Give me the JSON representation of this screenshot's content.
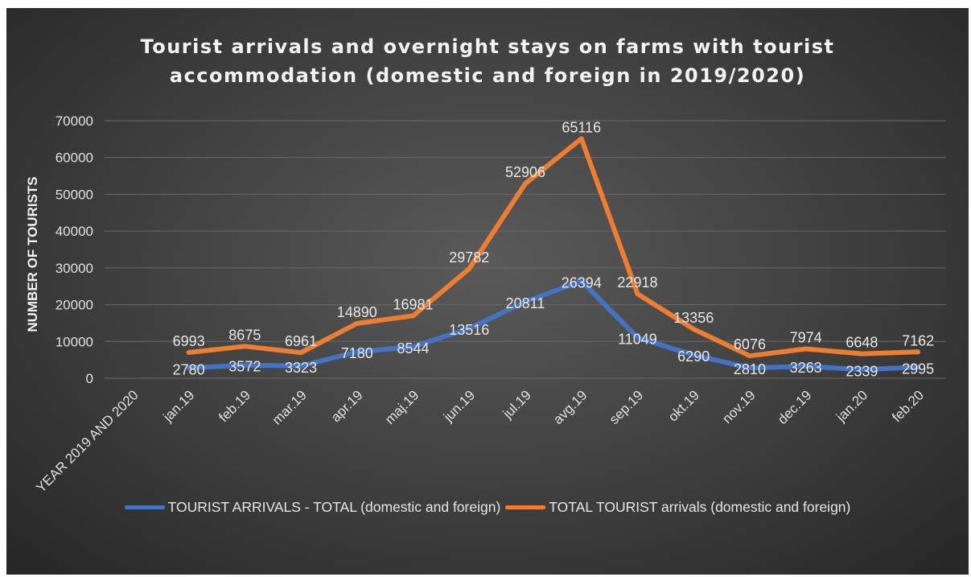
{
  "chart_data": {
    "type": "line",
    "title_lines": [
      "Tourist arrivals and overnight stays on farms with tourist",
      "accommodation (domestic and foreign in 2019/2020)"
    ],
    "xlabel": "",
    "ylabel": "NUMBER OF TOURISTS",
    "ylim": [
      0,
      70000
    ],
    "yticks": [
      "0",
      "10000",
      "20000",
      "30000",
      "40000",
      "50000",
      "60000",
      "70000"
    ],
    "categories": [
      "YEAR 2019 AND 2020",
      "jan.19",
      "feb.19",
      "mar.19",
      "apr.19",
      "maj.19",
      "jun.19",
      "jul.19",
      "avg.19",
      "sep.19",
      "okt.19",
      "nov.19",
      "dec.19",
      "jan.20",
      "feb.20"
    ],
    "series": [
      {
        "name": "TOURIST ARRIVALS - TOTAL (domestic and foreign)",
        "color": "#4472c4",
        "values": [
          null,
          2780,
          3572,
          3323,
          7180,
          8544,
          13516,
          20811,
          26394,
          11049,
          6290,
          2810,
          3263,
          2339,
          2995
        ]
      },
      {
        "name": "TOTAL TOURIST arrivals (domestic and foreign)",
        "color": "#ed7d31",
        "values": [
          null,
          6993,
          8675,
          6961,
          14890,
          16981,
          29782,
          52906,
          65116,
          22918,
          13356,
          6076,
          7974,
          6648,
          7162
        ]
      }
    ],
    "grid": true,
    "legend_position": "bottom"
  }
}
